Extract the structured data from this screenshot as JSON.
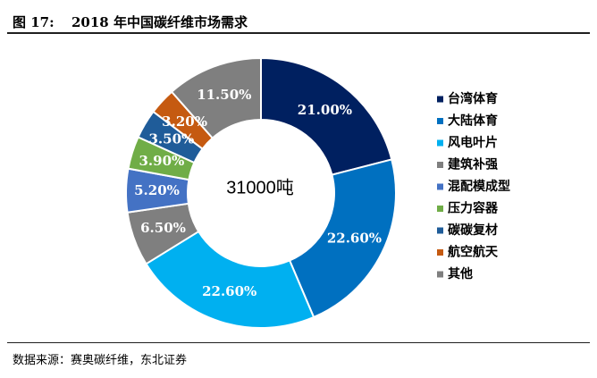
{
  "figure": {
    "prefix": "图 17:",
    "title": "2018 年中国碳纤维市场需求",
    "source": "数据来源：赛奥碳纤维，东北证券"
  },
  "chart_data": {
    "type": "pie",
    "style": "donut",
    "center_label": "31000吨",
    "legend_position": "right",
    "categories": [
      "台湾体育",
      "大陆体育",
      "风电叶片",
      "建筑补强",
      "混配模成型",
      "压力容器",
      "碳碳复材",
      "航空航天",
      "其他"
    ],
    "values": [
      21.0,
      22.6,
      22.6,
      6.5,
      5.2,
      3.9,
      3.5,
      3.2,
      11.5
    ],
    "labels": [
      "21.00%",
      "22.60%",
      "22.60%",
      "6.50%",
      "5.20%",
      "3.90%",
      "3.50%",
      "3.20%",
      "11.50%"
    ],
    "colors": [
      "#002060",
      "#0070C0",
      "#00B0F0",
      "#7F7F7F",
      "#4472C4",
      "#70AD47",
      "#1F5C99",
      "#C55A11",
      "#7F7F7F"
    ]
  }
}
